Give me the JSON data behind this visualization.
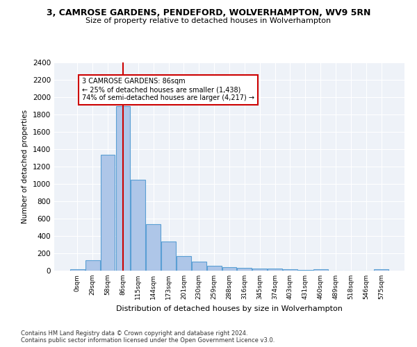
{
  "title_line1": "3, CAMROSE GARDENS, PENDEFORD, WOLVERHAMPTON, WV9 5RN",
  "title_line2": "Size of property relative to detached houses in Wolverhampton",
  "xlabel": "Distribution of detached houses by size in Wolverhampton",
  "ylabel": "Number of detached properties",
  "categories": [
    "0sqm",
    "29sqm",
    "58sqm",
    "86sqm",
    "115sqm",
    "144sqm",
    "173sqm",
    "201sqm",
    "230sqm",
    "259sqm",
    "288sqm",
    "316sqm",
    "345sqm",
    "374sqm",
    "403sqm",
    "431sqm",
    "460sqm",
    "489sqm",
    "518sqm",
    "546sqm",
    "575sqm"
  ],
  "values": [
    15,
    120,
    1340,
    1900,
    1045,
    540,
    335,
    170,
    105,
    60,
    40,
    30,
    25,
    22,
    15,
    5,
    20,
    0,
    0,
    2,
    15
  ],
  "bar_color": "#aec6e8",
  "bar_edge_color": "#5a9fd4",
  "bar_linewidth": 0.8,
  "property_index": 3,
  "vline_color": "#cc0000",
  "annotation_text_line1": "3 CAMROSE GARDENS: 86sqm",
  "annotation_text_line2": "← 25% of detached houses are smaller (1,438)",
  "annotation_text_line3": "74% of semi-detached houses are larger (4,217) →",
  "annotation_box_color": "#cc0000",
  "background_color": "#eef2f8",
  "grid_color": "#ffffff",
  "ylim": [
    0,
    2400
  ],
  "yticks": [
    0,
    200,
    400,
    600,
    800,
    1000,
    1200,
    1400,
    1600,
    1800,
    2000,
    2200,
    2400
  ],
  "footnote_line1": "Contains HM Land Registry data © Crown copyright and database right 2024.",
  "footnote_line2": "Contains public sector information licensed under the Open Government Licence v3.0."
}
